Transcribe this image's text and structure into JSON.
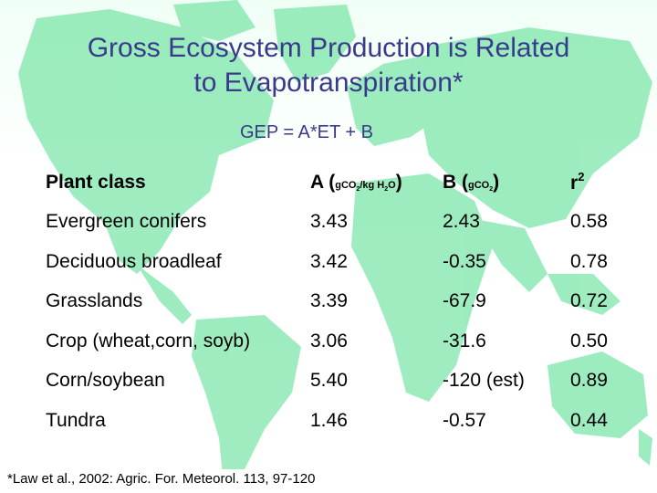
{
  "slide": {
    "title_line1": "Gross Ecosystem Production is Related",
    "title_line2": "to Evapotranspiration*",
    "formula": "GEP = A*ET + B",
    "footnote": "*Law et al., 2002: Agric. For. Meteorol. 113, 97-120",
    "colors": {
      "title": "#3a3a8c",
      "map": "#7de6aa",
      "text": "#000000"
    }
  },
  "table": {
    "headers": {
      "plant_class": "Plant class",
      "a_main": "A (",
      "a_unit_g": "g",
      "a_unit_co": "CO",
      "a_unit_2": "2",
      "a_unit_kg": "/kg H",
      "a_unit_h2": "2",
      "a_unit_o": "O",
      "a_close": ")",
      "b_main": "B (",
      "b_unit_g": "g",
      "b_unit_co": "CO",
      "b_unit_2": "2",
      "b_close": ")",
      "r_main": "r",
      "r_sup": "2"
    },
    "rows": [
      {
        "plant_class": "Evergreen conifers",
        "a": "3.43",
        "b": "2.43",
        "r2": "0.58"
      },
      {
        "plant_class": "Deciduous broadleaf",
        "a": "3.42",
        "b": "-0.35",
        "r2": "0.78"
      },
      {
        "plant_class": "Grasslands",
        "a": "3.39",
        "b": "-67.9",
        "r2": "0.72"
      },
      {
        "plant_class": "Crop (wheat,corn, soyb)",
        "a": "3.06",
        "b": "-31.6",
        "r2": "0.50"
      },
      {
        "plant_class": "Corn/soybean",
        "a": "5.40",
        "b": "-120 (est)",
        "r2": "0.89"
      },
      {
        "plant_class": "Tundra",
        "a": "1.46",
        "b": "-0.57",
        "r2": "0.44"
      }
    ]
  }
}
